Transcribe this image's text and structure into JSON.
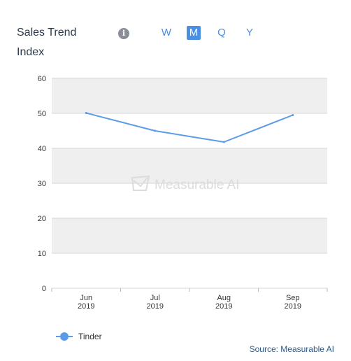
{
  "header": {
    "title": "Sales Trend",
    "info_icon": "info-icon",
    "period_tabs": [
      {
        "label": "W",
        "active": false
      },
      {
        "label": "M",
        "active": true
      },
      {
        "label": "Q",
        "active": false
      },
      {
        "label": "Y",
        "active": false
      }
    ]
  },
  "chart_data": {
    "type": "line",
    "ylabel": "Index",
    "categories": [
      [
        "Jun",
        "2019"
      ],
      [
        "Jul",
        "2019"
      ],
      [
        "Aug",
        "2019"
      ],
      [
        "Sep",
        "2019"
      ]
    ],
    "series": [
      {
        "name": "Tinder",
        "values": [
          50.1,
          45.0,
          41.8,
          49.5
        ],
        "color": "#5b9be8"
      }
    ],
    "ylim": [
      0,
      60
    ],
    "yticks": [
      0,
      10,
      20,
      30,
      40,
      50,
      60
    ],
    "grid": true,
    "band_colors": [
      "#ffffff",
      "#efefef"
    ],
    "watermark": "Measurable AI",
    "legend_position": "bottom-left"
  },
  "footer": {
    "source": "Source: Measurable AI"
  }
}
